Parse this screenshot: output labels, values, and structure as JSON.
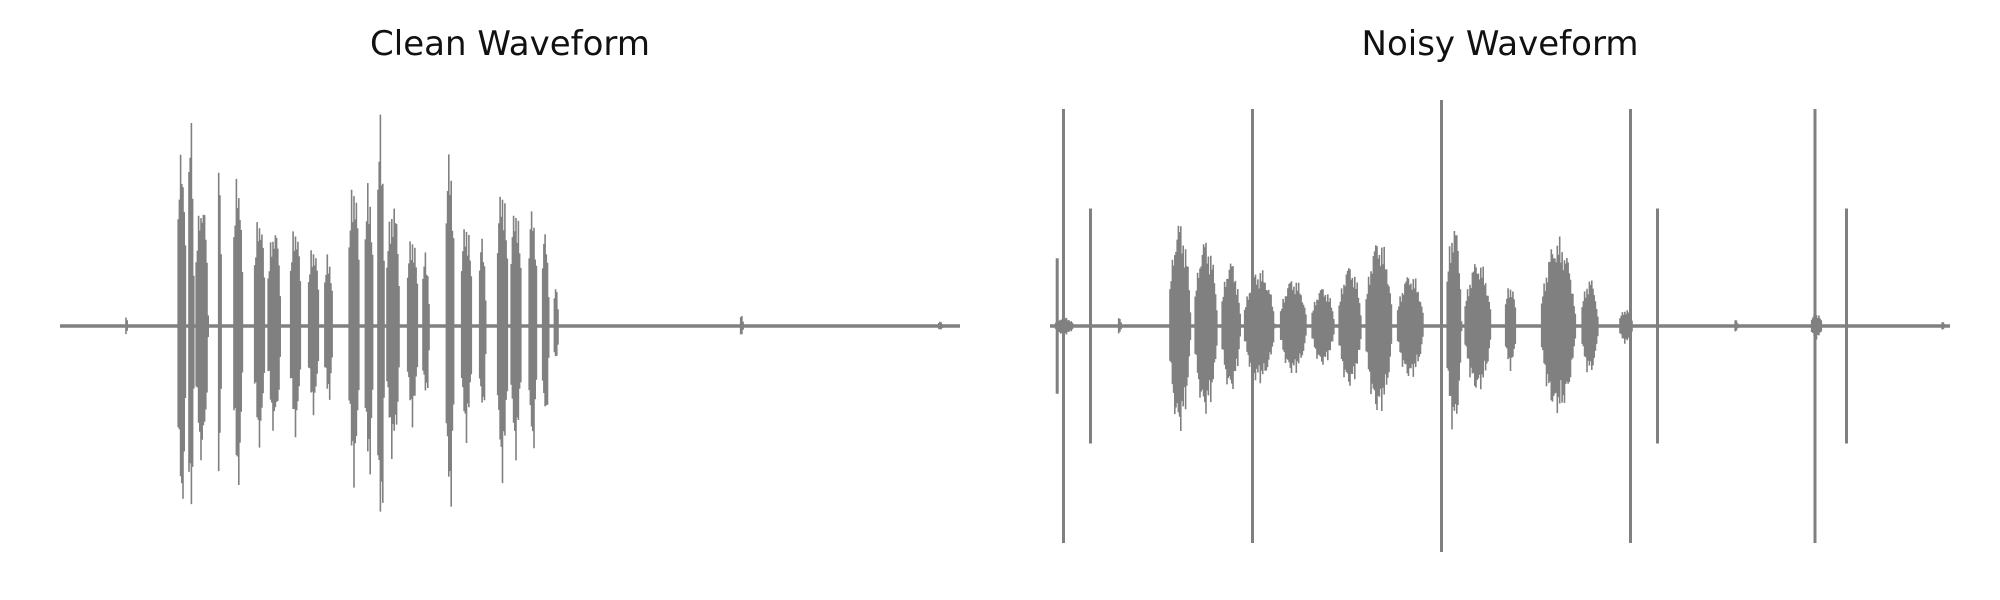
{
  "style": {
    "line_color": "#808080",
    "background": "#ffffff",
    "title_color": "#111111"
  },
  "chart_data": [
    {
      "type": "line",
      "title": "Clean Waveform",
      "xlabel": "",
      "ylabel": "",
      "axes_visible": false,
      "grid": false,
      "xlim": [
        0,
        1
      ],
      "ylim": [
        -1,
        1
      ],
      "baseline": 0,
      "bursts": [
        {
          "x0": 0.072,
          "x1": 0.076,
          "amp": 0.04
        },
        {
          "x0": 0.13,
          "x1": 0.142,
          "amp": 0.85
        },
        {
          "x0": 0.142,
          "x1": 0.15,
          "amp": 0.98
        },
        {
          "x0": 0.15,
          "x1": 0.167,
          "amp": 0.62
        },
        {
          "x0": 0.175,
          "x1": 0.18,
          "amp": 0.78
        },
        {
          "x0": 0.192,
          "x1": 0.205,
          "amp": 0.74
        },
        {
          "x0": 0.215,
          "x1": 0.23,
          "amp": 0.55
        },
        {
          "x0": 0.23,
          "x1": 0.248,
          "amp": 0.48
        },
        {
          "x0": 0.255,
          "x1": 0.27,
          "amp": 0.5
        },
        {
          "x0": 0.275,
          "x1": 0.29,
          "amp": 0.4
        },
        {
          "x0": 0.293,
          "x1": 0.305,
          "amp": 0.35
        },
        {
          "x0": 0.32,
          "x1": 0.335,
          "amp": 0.72
        },
        {
          "x0": 0.338,
          "x1": 0.35,
          "amp": 0.7
        },
        {
          "x0": 0.352,
          "x1": 0.362,
          "amp": 1.0
        },
        {
          "x0": 0.362,
          "x1": 0.38,
          "amp": 0.6
        },
        {
          "x0": 0.385,
          "x1": 0.4,
          "amp": 0.45
        },
        {
          "x0": 0.402,
          "x1": 0.412,
          "amp": 0.35
        },
        {
          "x0": 0.428,
          "x1": 0.44,
          "amp": 0.85
        },
        {
          "x0": 0.445,
          "x1": 0.46,
          "amp": 0.52
        },
        {
          "x0": 0.465,
          "x1": 0.475,
          "amp": 0.42
        },
        {
          "x0": 0.485,
          "x1": 0.5,
          "amp": 0.7
        },
        {
          "x0": 0.5,
          "x1": 0.515,
          "amp": 0.6
        },
        {
          "x0": 0.52,
          "x1": 0.532,
          "amp": 0.58
        },
        {
          "x0": 0.535,
          "x1": 0.545,
          "amp": 0.45
        },
        {
          "x0": 0.548,
          "x1": 0.555,
          "amp": 0.18
        },
        {
          "x0": 0.755,
          "x1": 0.76,
          "amp": 0.05
        },
        {
          "x0": 0.975,
          "x1": 0.982,
          "amp": 0.02
        }
      ]
    },
    {
      "type": "line",
      "title": "Noisy Waveform",
      "xlabel": "",
      "ylabel": "",
      "axes_visible": false,
      "grid": false,
      "xlim": [
        0,
        1
      ],
      "ylim": [
        -1,
        1
      ],
      "baseline": 0,
      "spikes": [
        {
          "x": 0.008,
          "up": 0.3,
          "down": 0.3
        },
        {
          "x": 0.015,
          "up": 0.96,
          "down": 0.96
        },
        {
          "x": 0.045,
          "up": 0.52,
          "down": 0.52
        },
        {
          "x": 0.225,
          "up": 0.96,
          "down": 0.96
        },
        {
          "x": 0.435,
          "up": 1.0,
          "down": 1.0
        },
        {
          "x": 0.645,
          "up": 0.96,
          "down": 0.96
        },
        {
          "x": 0.675,
          "up": 0.52,
          "down": 0.52
        },
        {
          "x": 0.85,
          "up": 0.96,
          "down": 0.96
        },
        {
          "x": 0.885,
          "up": 0.52,
          "down": 0.52
        }
      ],
      "bursts": [
        {
          "x0": 0.005,
          "x1": 0.03,
          "amp": 0.04
        },
        {
          "x0": 0.075,
          "x1": 0.08,
          "amp": 0.04
        },
        {
          "x0": 0.132,
          "x1": 0.16,
          "amp": 0.48
        },
        {
          "x0": 0.16,
          "x1": 0.19,
          "amp": 0.4
        },
        {
          "x0": 0.19,
          "x1": 0.215,
          "amp": 0.3
        },
        {
          "x0": 0.215,
          "x1": 0.255,
          "amp": 0.26
        },
        {
          "x0": 0.255,
          "x1": 0.29,
          "amp": 0.22
        },
        {
          "x0": 0.29,
          "x1": 0.32,
          "amp": 0.18
        },
        {
          "x0": 0.32,
          "x1": 0.35,
          "amp": 0.28
        },
        {
          "x0": 0.35,
          "x1": 0.385,
          "amp": 0.4
        },
        {
          "x0": 0.385,
          "x1": 0.42,
          "amp": 0.24
        },
        {
          "x0": 0.44,
          "x1": 0.46,
          "amp": 0.48
        },
        {
          "x0": 0.46,
          "x1": 0.495,
          "amp": 0.3
        },
        {
          "x0": 0.505,
          "x1": 0.52,
          "amp": 0.2
        },
        {
          "x0": 0.545,
          "x1": 0.59,
          "amp": 0.4
        },
        {
          "x0": 0.59,
          "x1": 0.612,
          "amp": 0.22
        },
        {
          "x0": 0.632,
          "x1": 0.65,
          "amp": 0.08
        },
        {
          "x0": 0.76,
          "x1": 0.765,
          "amp": 0.03
        },
        {
          "x0": 0.845,
          "x1": 0.86,
          "amp": 0.06
        },
        {
          "x0": 0.99,
          "x1": 0.995,
          "amp": 0.02
        }
      ]
    }
  ]
}
